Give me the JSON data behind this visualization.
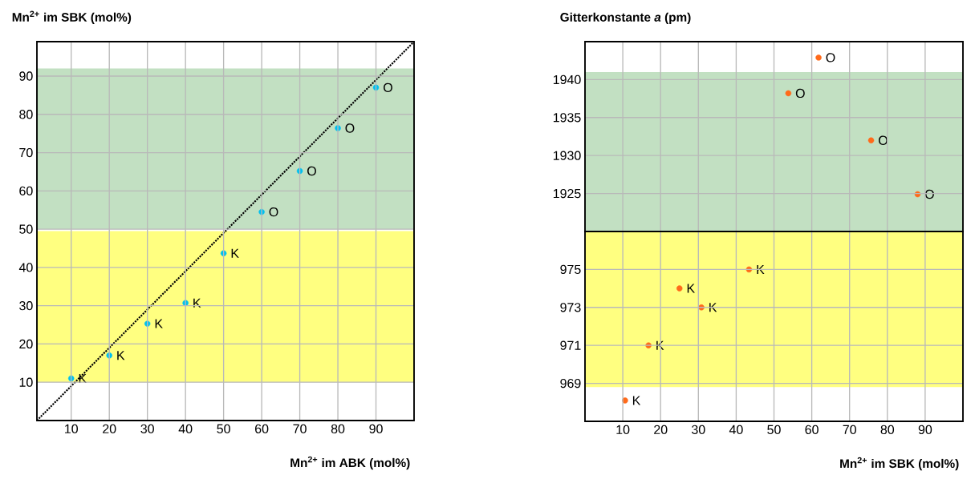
{
  "chart_data": [
    {
      "type": "scatter",
      "ylabel": "Mn$^{2+}$ im SBK (mol%)",
      "xlabel": "Mn$^{2+}$ im ABK (mol%)",
      "xlim": [
        1,
        100
      ],
      "ylim": [
        0,
        99
      ],
      "xticks": [
        10,
        20,
        30,
        40,
        50,
        60,
        70,
        80,
        90
      ],
      "yticks": [
        10,
        20,
        30,
        40,
        50,
        60,
        70,
        80,
        90
      ],
      "grid": true,
      "marker": "circle",
      "series": [
        {
          "type": "scatter",
          "color": "#00c0f0",
          "x": [
            10,
            20,
            30,
            40,
            50,
            60,
            70,
            80,
            90
          ],
          "values": [
            11,
            17,
            25.3,
            30.7,
            43.7,
            54.5,
            65.2,
            76.4,
            87
          ]
        },
        {
          "type": "line",
          "color": "#000000",
          "line_style": "dotted",
          "marker": "none",
          "x": [
            1,
            100
          ],
          "values": [
            0,
            99
          ]
        }
      ],
      "bands": [
        {
          "axis": "y",
          "from": 10,
          "to": 49.5,
          "color": "#ffff80"
        },
        {
          "axis": "y",
          "from": 50,
          "to": 92,
          "color": "#c2e0c2"
        }
      ],
      "annotations": [
        {
          "text": "K",
          "x": 10,
          "y": 11
        },
        {
          "text": "K",
          "x": 20,
          "y": 17
        },
        {
          "text": "K",
          "x": 30,
          "y": 25.3
        },
        {
          "text": "K",
          "x": 40,
          "y": 30.7
        },
        {
          "text": "K",
          "x": 50,
          "y": 43.7
        },
        {
          "text": "O",
          "x": 60,
          "y": 54.5
        },
        {
          "text": "O",
          "x": 70,
          "y": 65.2
        },
        {
          "text": "O",
          "x": 80,
          "y": 76.4
        },
        {
          "text": "O",
          "x": 90,
          "y": 87
        }
      ]
    },
    {
      "type": "scatter",
      "ylabel": "Gitterkonstante *a* (pm)",
      "tick_labels": "y",
      "xlim": [
        0,
        100
      ],
      "ylim": [
        1920,
        1945
      ],
      "xticks": [
        10,
        20,
        30,
        40,
        50,
        60,
        70,
        80,
        90
      ],
      "yticks": [
        1925,
        1930,
        1935,
        1940
      ],
      "grid": true,
      "marker": "circle",
      "series": [
        {
          "color": "#ff6a1a",
          "x": [
            53.8,
            61.8,
            75.7,
            88
          ],
          "values": [
            1938.2,
            1942.9,
            1932,
            1924.9
          ]
        }
      ],
      "bands": [
        {
          "axis": "y",
          "from": 1920,
          "to": 1941,
          "color": "#c2e0c2"
        }
      ],
      "annotations": [
        {
          "text": "O",
          "x": 53.8,
          "y": 1938.2
        },
        {
          "text": "O",
          "x": 61.8,
          "y": 1942.9
        },
        {
          "text": "O",
          "x": 75.7,
          "y": 1932
        },
        {
          "text": "O",
          "x": 88,
          "y": 1924.9
        }
      ]
    },
    {
      "type": "scatter",
      "xlabel": "Mn$^{2+}$ im SBK (mol%)",
      "xlim": [
        0,
        100
      ],
      "ylim": [
        967,
        977
      ],
      "xticks": [
        10,
        20,
        30,
        40,
        50,
        60,
        70,
        80,
        90
      ],
      "yticks": [
        969,
        971,
        973,
        975
      ],
      "grid": true,
      "marker": "circle",
      "series": [
        {
          "color": "#ff6a1a",
          "x": [
            10.6,
            16.8,
            25,
            30.8,
            43.4
          ],
          "values": [
            968.1,
            971,
            974,
            973,
            975
          ]
        }
      ],
      "bands": [
        {
          "axis": "y",
          "from": 968.8,
          "to": 977,
          "color": "#ffff80"
        }
      ],
      "annotations": [
        {
          "text": "K",
          "x": 10.6,
          "y": 968.1
        },
        {
          "text": "K",
          "x": 16.8,
          "y": 971
        },
        {
          "text": "K",
          "x": 25,
          "y": 974
        },
        {
          "text": "K",
          "x": 30.8,
          "y": 973
        },
        {
          "text": "K",
          "x": 43.4,
          "y": 975
        }
      ]
    }
  ]
}
